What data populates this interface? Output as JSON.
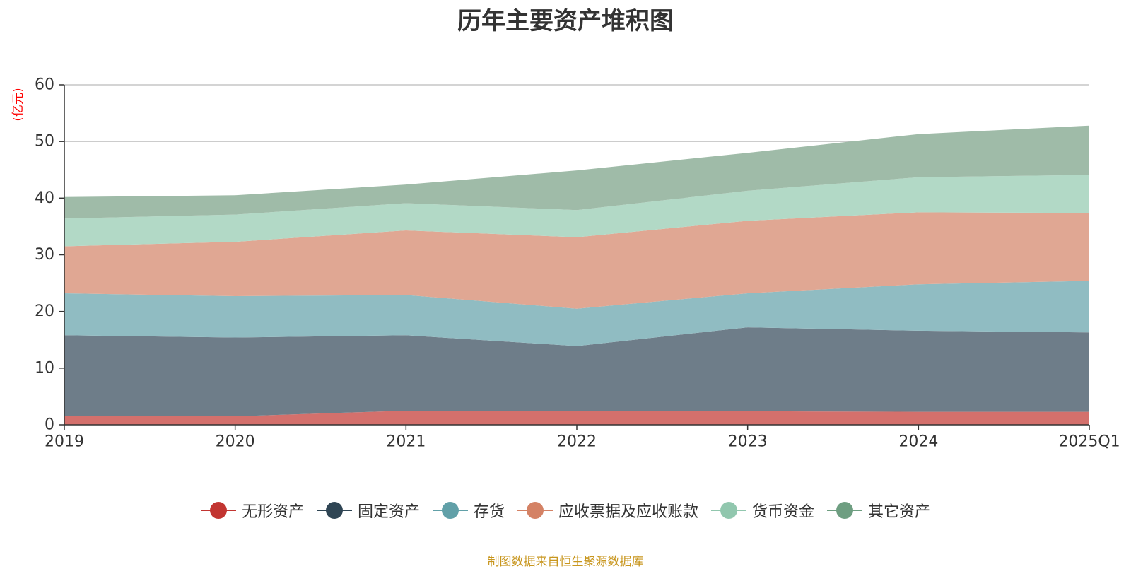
{
  "title": "历年主要资产堆积图",
  "source_note": "制图数据来自恒生聚源数据库",
  "chart_data": {
    "type": "area",
    "stacked": true,
    "title": "历年主要资产堆积图",
    "ylabel": "亿元",
    "ylabel_display": "(亿元)",
    "ylim": [
      0,
      60
    ],
    "yticks": [
      0,
      10,
      20,
      30,
      40,
      50,
      60
    ],
    "grid": true,
    "legend_position": "bottom",
    "categories": [
      "2019",
      "2020",
      "2021",
      "2022",
      "2023",
      "2024",
      "2025Q1"
    ],
    "series": [
      {
        "name": "无形资产",
        "color": "#c23531",
        "fill": "#d4706c",
        "values": [
          1.5,
          1.5,
          2.5,
          2.5,
          2.4,
          2.3,
          2.3
        ]
      },
      {
        "name": "固定资产",
        "color": "#2f4554",
        "fill": "#6e7d89",
        "values": [
          14.3,
          13.9,
          13.3,
          11.4,
          14.8,
          14.3,
          14.0
        ]
      },
      {
        "name": "存货",
        "color": "#61a0a8",
        "fill": "#90bcc2",
        "values": [
          7.4,
          7.3,
          7.1,
          6.6,
          6.0,
          8.2,
          9.1
        ]
      },
      {
        "name": "应收票据及应收账款",
        "color": "#d48265",
        "fill": "#e0a793",
        "values": [
          8.3,
          9.6,
          11.4,
          12.6,
          12.8,
          12.7,
          12.0
        ]
      },
      {
        "name": "货币资金",
        "color": "#91c7ae",
        "fill": "#b2d9c6",
        "values": [
          4.9,
          4.8,
          4.8,
          4.8,
          5.3,
          6.2,
          6.7
        ]
      },
      {
        "name": "其它资产",
        "color": "#6e9e81",
        "fill": "#9fbba8",
        "values": [
          3.8,
          3.4,
          3.3,
          7.0,
          6.7,
          7.6,
          8.7
        ]
      }
    ]
  }
}
